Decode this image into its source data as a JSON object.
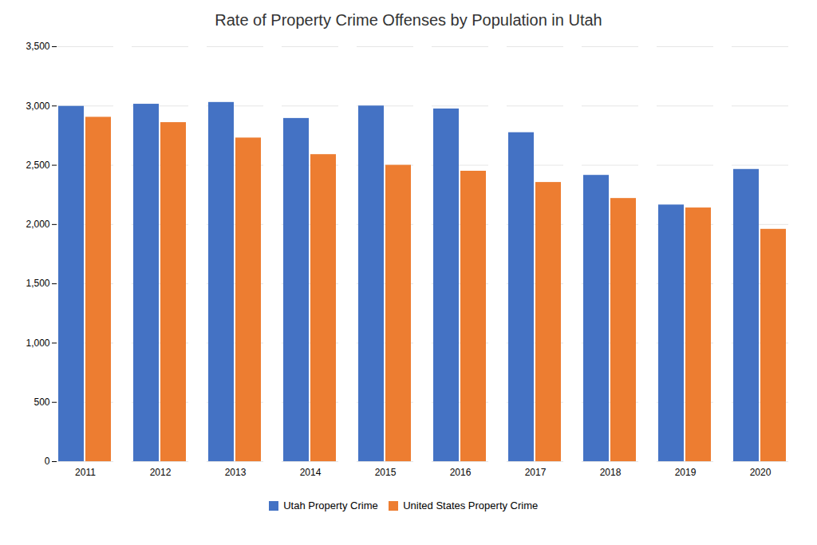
{
  "chart_data": {
    "type": "bar",
    "title": "Rate of Property Crime Offenses by Population in Utah",
    "categories": [
      "2011",
      "2012",
      "2013",
      "2014",
      "2015",
      "2016",
      "2017",
      "2018",
      "2019",
      "2020"
    ],
    "series": [
      {
        "name": "Utah Property Crime",
        "color": "#4472C4",
        "values": [
          2997,
          3015,
          3030,
          2895,
          3000,
          2975,
          2775,
          2415,
          2165,
          2465
        ]
      },
      {
        "name": "United States Property Crime",
        "color": "#ED7D31",
        "values": [
          2905,
          2860,
          2730,
          2590,
          2500,
          2450,
          2355,
          2220,
          2140,
          1960
        ]
      }
    ],
    "ylim": [
      0,
      3500
    ],
    "yticks": [
      0,
      500,
      1000,
      1500,
      2000,
      2500,
      3000,
      3500
    ],
    "grid": true,
    "legend": "bottom"
  }
}
